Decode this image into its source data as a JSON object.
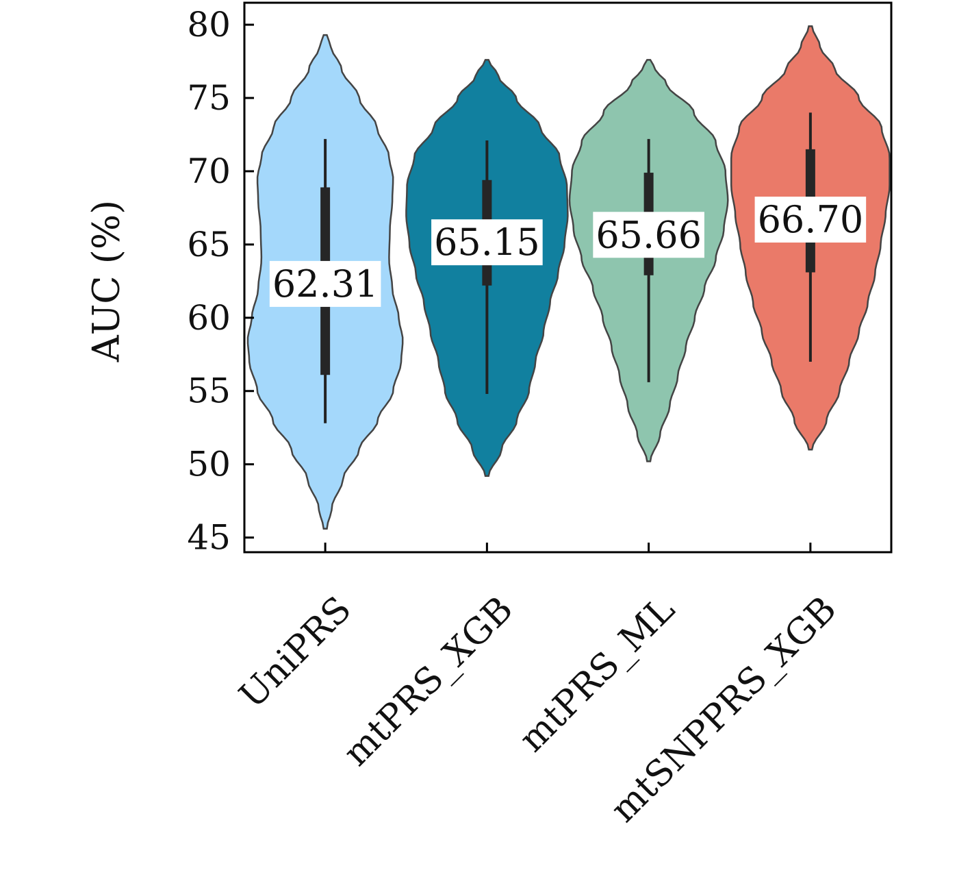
{
  "chart_data": {
    "type": "violin",
    "title": "",
    "xlabel": "",
    "ylabel": "AUC (%)",
    "ylim": [
      44,
      81.5
    ],
    "yticks": [
      45,
      50,
      55,
      60,
      65,
      70,
      75,
      80
    ],
    "grid": false,
    "legend": "none",
    "categories": [
      "UniPRS",
      "mtPRS_XGB",
      "mtPRS_ML",
      "mtSNPPRS_XGB"
    ],
    "mean_labels": [
      "62.31",
      "65.15",
      "65.66",
      "66.70"
    ],
    "series": [
      {
        "category": "UniPRS",
        "color": "#a4d8fb",
        "mean": 62.31,
        "median": 61.1,
        "q1": 56.1,
        "q3": 68.9,
        "whisker_low": 52.8,
        "whisker_high": 72.2,
        "density_range": [
          45.6,
          79.3
        ],
        "density_shape": [
          [
            45.6,
            0.02
          ],
          [
            47,
            0.08
          ],
          [
            49,
            0.22
          ],
          [
            51,
            0.42
          ],
          [
            53,
            0.65
          ],
          [
            55,
            0.84
          ],
          [
            57,
            0.94
          ],
          [
            58.5,
            0.96
          ],
          [
            60,
            0.91
          ],
          [
            62,
            0.83
          ],
          [
            64,
            0.79
          ],
          [
            66,
            0.8
          ],
          [
            68,
            0.83
          ],
          [
            69.5,
            0.84
          ],
          [
            71,
            0.79
          ],
          [
            73,
            0.64
          ],
          [
            75,
            0.42
          ],
          [
            77,
            0.2
          ],
          [
            78.5,
            0.07
          ],
          [
            79.3,
            0.02
          ]
        ]
      },
      {
        "category": "mtPRS_XGB",
        "color": "#11809f",
        "mean": 65.15,
        "median": 64.2,
        "q1": 62.2,
        "q3": 69.4,
        "whisker_low": 54.8,
        "whisker_high": 72.1,
        "density_range": [
          49.2,
          77.6
        ],
        "density_shape": [
          [
            49.2,
            0.02
          ],
          [
            51,
            0.18
          ],
          [
            53,
            0.37
          ],
          [
            55,
            0.52
          ],
          [
            57,
            0.6
          ],
          [
            59,
            0.7
          ],
          [
            61,
            0.78
          ],
          [
            63,
            0.88
          ],
          [
            65,
            0.96
          ],
          [
            67,
            1.0
          ],
          [
            69,
            0.99
          ],
          [
            71,
            0.9
          ],
          [
            73,
            0.66
          ],
          [
            75,
            0.36
          ],
          [
            76.5,
            0.14
          ],
          [
            77.6,
            0.02
          ]
        ]
      },
      {
        "category": "mtPRS_ML",
        "color": "#8ec5ae",
        "mean": 65.66,
        "median": 66.1,
        "q1": 62.9,
        "q3": 69.9,
        "whisker_low": 55.6,
        "whisker_high": 72.2,
        "density_range": [
          50.2,
          77.6
        ],
        "density_shape": [
          [
            50.2,
            0.02
          ],
          [
            52,
            0.14
          ],
          [
            54,
            0.26
          ],
          [
            56,
            0.36
          ],
          [
            58,
            0.46
          ],
          [
            60,
            0.57
          ],
          [
            62,
            0.69
          ],
          [
            64,
            0.83
          ],
          [
            66,
            0.93
          ],
          [
            68,
            0.98
          ],
          [
            70,
            0.95
          ],
          [
            72,
            0.83
          ],
          [
            74,
            0.56
          ],
          [
            76,
            0.22
          ],
          [
            77,
            0.08
          ],
          [
            77.6,
            0.02
          ]
        ]
      },
      {
        "category": "mtSNPPRS_XGB",
        "color": "#ea7a69",
        "mean": 66.7,
        "median": 66.5,
        "q1": 63.1,
        "q3": 71.5,
        "whisker_low": 57.0,
        "whisker_high": 74.0,
        "density_range": [
          51.0,
          79.9
        ],
        "density_shape": [
          [
            51.0,
            0.02
          ],
          [
            53,
            0.2
          ],
          [
            55,
            0.36
          ],
          [
            57,
            0.48
          ],
          [
            59,
            0.6
          ],
          [
            61,
            0.71
          ],
          [
            63,
            0.8
          ],
          [
            65,
            0.87
          ],
          [
            67,
            0.93
          ],
          [
            69,
            0.98
          ],
          [
            71,
            0.98
          ],
          [
            73,
            0.88
          ],
          [
            75,
            0.6
          ],
          [
            77,
            0.3
          ],
          [
            78.5,
            0.12
          ],
          [
            79.9,
            0.02
          ]
        ]
      }
    ]
  }
}
